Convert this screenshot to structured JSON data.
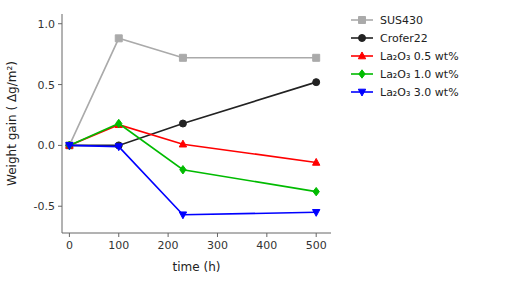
{
  "chart_data": {
    "type": "line",
    "xlabel": "time (h)",
    "ylabel": "Weight gain ( Δg/m²)",
    "x": [
      0,
      100,
      230,
      500
    ],
    "series": [
      {
        "name": "SUS430",
        "color": "#aaaaaa",
        "marker": "square",
        "values": [
          0.0,
          0.88,
          0.72,
          0.72
        ]
      },
      {
        "name": "Crofer22",
        "color": "#222222",
        "marker": "circle",
        "values": [
          0.0,
          0.0,
          0.18,
          0.52
        ]
      },
      {
        "name": "La₂O₃ 0.5 wt%",
        "color": "#ff0000",
        "marker": "triangle-up",
        "values": [
          0.0,
          0.17,
          0.01,
          -0.14
        ]
      },
      {
        "name": "La₂O₃ 1.0 wt%",
        "color": "#00bb00",
        "marker": "diamond",
        "values": [
          0.0,
          0.18,
          -0.2,
          -0.38
        ]
      },
      {
        "name": "La₂O₃ 3.0 wt%",
        "color": "#0000ff",
        "marker": "triangle-down",
        "values": [
          0.0,
          -0.01,
          -0.57,
          -0.55
        ]
      }
    ],
    "xlim": [
      -15,
      530
    ],
    "ylim": [
      -0.72,
      1.08
    ],
    "xticks": [
      0,
      100,
      200,
      300,
      400,
      500
    ],
    "yticks": [
      -0.5,
      {
        "value": 0.0,
        "label": "0.0"
      },
      0.5,
      {
        "value": 1.0,
        "label": "1.0"
      }
    ],
    "grid": false,
    "legend": "right"
  }
}
